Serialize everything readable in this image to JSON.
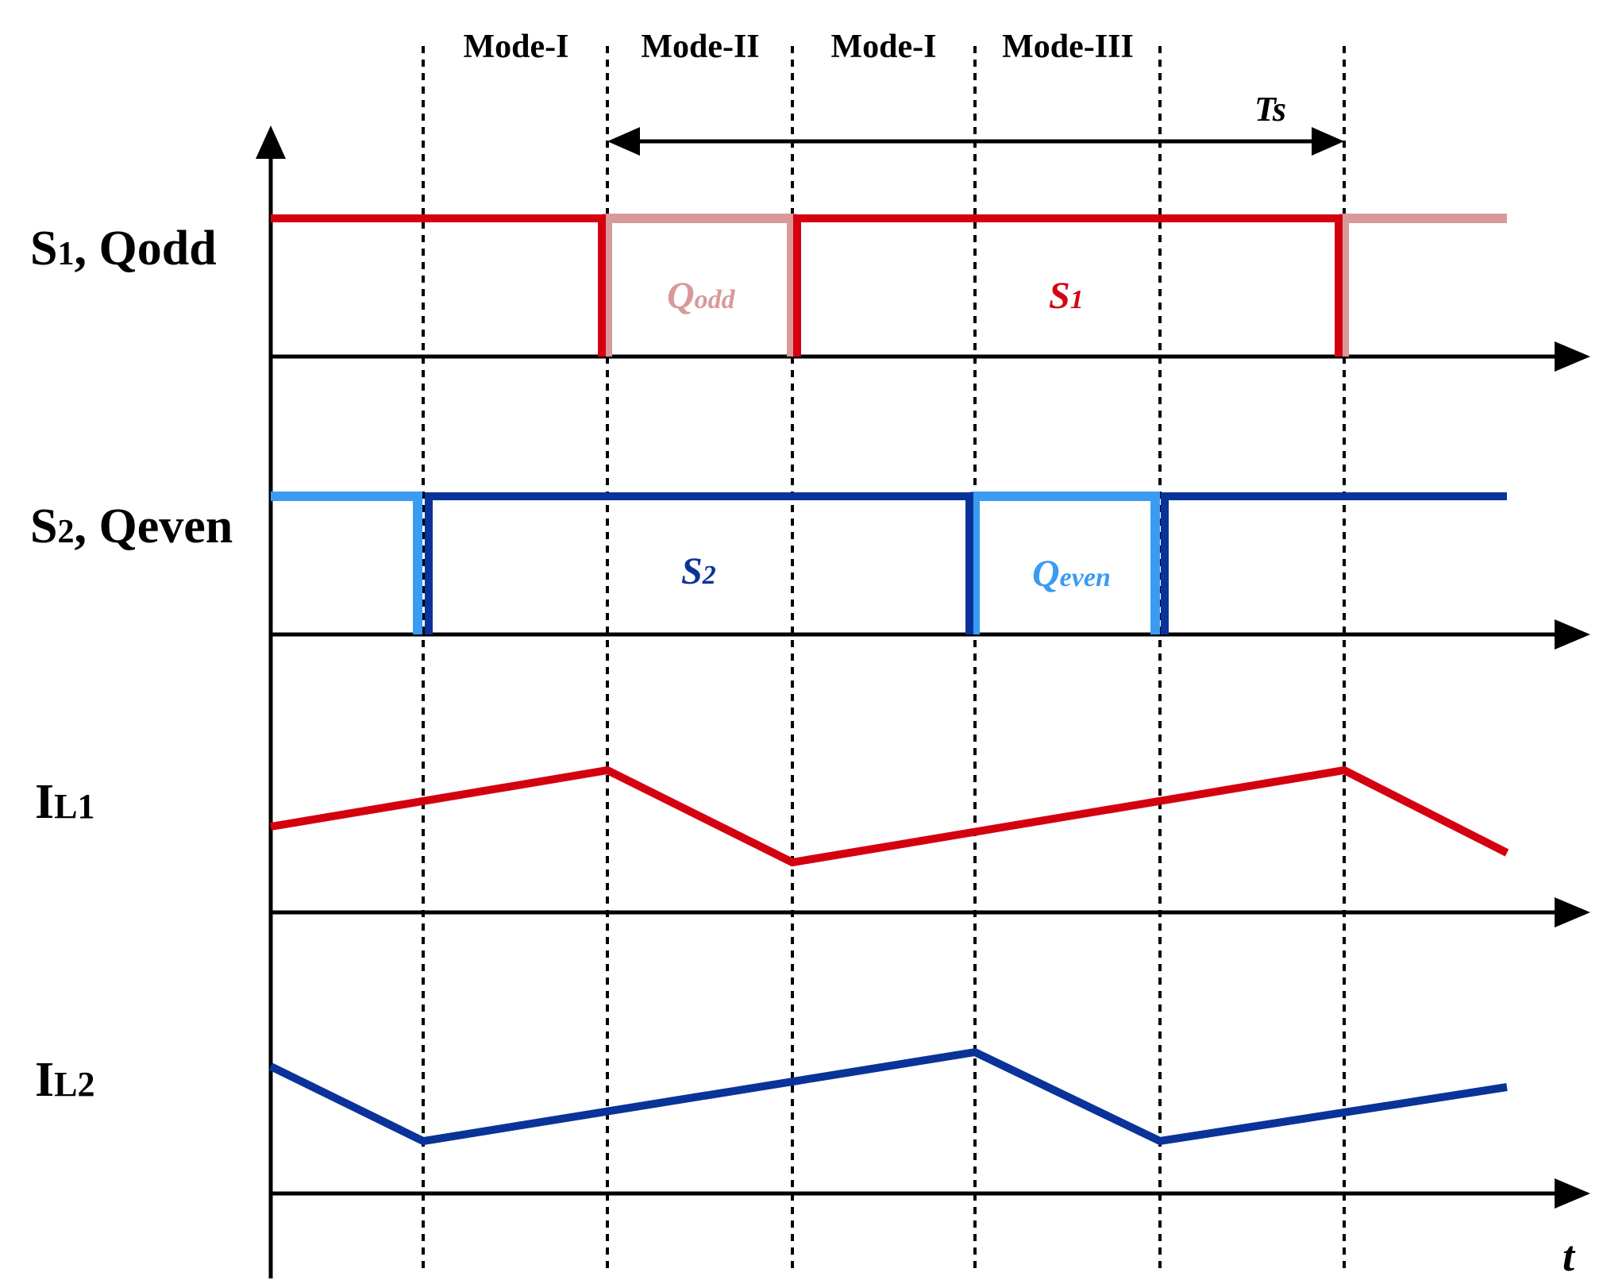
{
  "modes": [
    "Mode-I",
    "Mode-II",
    "Mode-I",
    "Mode-III"
  ],
  "period_label": "Ts",
  "time_axis_label": "t",
  "rows": [
    {
      "label_main": "S",
      "label_sub": "1",
      "label_rest": ", Qodd"
    },
    {
      "label_main": "S",
      "label_sub": "2",
      "label_rest": ", Qeven"
    },
    {
      "label_main": "I",
      "label_sub": "L1",
      "label_rest": ""
    },
    {
      "label_main": "I",
      "label_sub": "L2",
      "label_rest": ""
    }
  ],
  "signal_labels": {
    "qodd": {
      "main": "Q",
      "sub": "odd"
    },
    "s1": {
      "main": "S",
      "sub": "1"
    },
    "s2": {
      "main": "S",
      "sub": "2"
    },
    "qeven": {
      "main": "Q",
      "sub": "even"
    }
  },
  "colors": {
    "s1": "#d40010",
    "qodd": "#d9999a",
    "s2": "#0a3399",
    "qeven": "#3a9bf2",
    "axis": "#000000"
  }
}
